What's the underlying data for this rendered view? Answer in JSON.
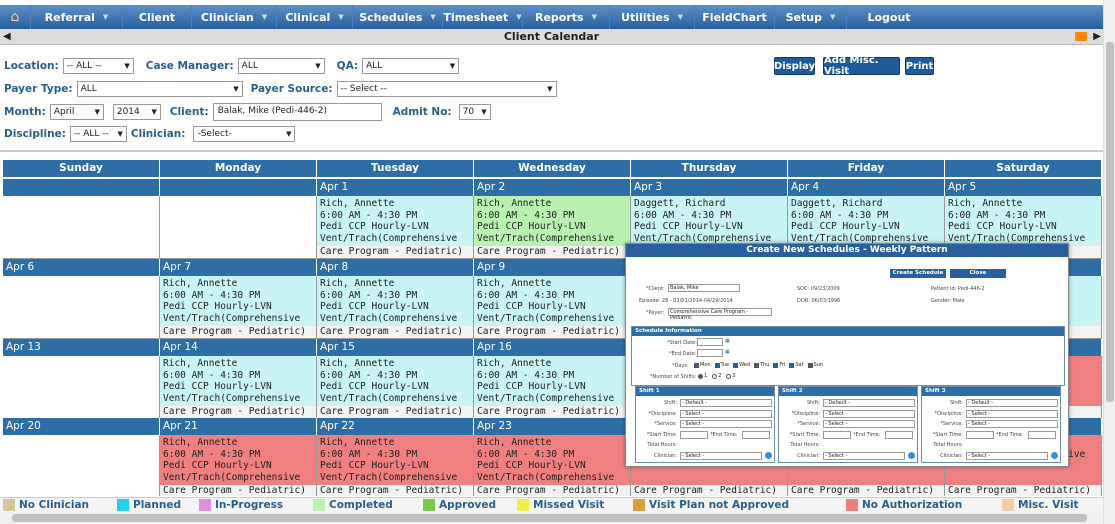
{
  "nav": {
    "items": [
      {
        "label": "Referral",
        "arrow": true
      },
      {
        "label": "Client",
        "arrow": false
      },
      {
        "label": "Clinician",
        "arrow": true
      },
      {
        "label": "Clinical",
        "arrow": true
      },
      {
        "label": "Schedules",
        "arrow": true
      },
      {
        "label": "Timesheet",
        "arrow": true
      },
      {
        "label": "Reports",
        "arrow": true
      },
      {
        "label": "Utilities",
        "arrow": true
      },
      {
        "label": "FieldChart",
        "arrow": false
      },
      {
        "label": "Setup",
        "arrow": true
      },
      {
        "label": "Logout",
        "arrow": false
      }
    ]
  },
  "page": {
    "title": "Client Calendar"
  },
  "filters": {
    "location_label": "Location:",
    "location_value": "-- ALL --",
    "case_manager_label": "Case Manager:",
    "case_manager_value": "ALL",
    "qa_label": "QA:",
    "qa_value": "ALL",
    "payer_type_label": "Payer Type:",
    "payer_type_value": "ALL",
    "payer_source_label": "Payer Source:",
    "payer_source_value": "-- Select --",
    "month_label": "Month:",
    "month_value": "April",
    "year_value": "2014",
    "client_label": "Client:",
    "client_value": "Balak, Mike (Pedi-446-2)",
    "admit_label": "Admit No:",
    "admit_value": "70",
    "discipline_label": "Discipline:",
    "discipline_value": "-- ALL --",
    "clinician_label": "Clinician:",
    "clinician_value": "-Select-"
  },
  "buttons": {
    "display": "Display",
    "add_misc": "Add Misc. Visit",
    "print": "Print"
  },
  "calendar": {
    "days": [
      "Sunday",
      "Monday",
      "Tuesday",
      "Wednesday",
      "Thursday",
      "Friday",
      "Saturday"
    ],
    "weeks": [
      {
        "dates": [
          "",
          "",
          "Apr 1",
          "Apr 2",
          "Apr 3",
          "Apr 4",
          "Apr 5"
        ],
        "events": [
          null,
          null,
          {
            "status": "planned",
            "name": "Rich, Annette",
            "time": "6:00 AM - 4:30 PM",
            "service": "Pedi CCP Hourly-LVN",
            "program": "Vent/Trach(Comprehensive",
            "care": "Care Program - Pediatric)"
          },
          {
            "status": "approved",
            "name": "Rich, Annette",
            "time": "6:00 AM - 4:30 PM",
            "service": "Pedi CCP Hourly-LVN",
            "program": "Vent/Trach(Comprehensive",
            "care": "Care Program - Pediatric)"
          },
          {
            "status": "planned",
            "name": "Daggett, Richard",
            "time": "6:00 AM - 4:30 PM",
            "service": "Pedi CCP Hourly-LVN",
            "program": "Vent/Trach(Comprehensive",
            "care": ""
          },
          {
            "status": "planned",
            "name": "Daggett, Richard",
            "time": "6:00 AM - 4:30 PM",
            "service": "Pedi CCP Hourly-LVN",
            "program": "Vent/Trach(Comprehensive",
            "care": ""
          },
          {
            "status": "planned",
            "name": "Rich, Annette",
            "time": "6:00 AM - 4:30 PM",
            "service": "Pedi CCP Hourly-LVN",
            "program": "Vent/Trach(Comprehensive",
            "care": ""
          }
        ]
      },
      {
        "dates": [
          "Apr 6",
          "Apr 7",
          "Apr 8",
          "Apr 9",
          "",
          "",
          ""
        ],
        "events": [
          null,
          {
            "status": "planned",
            "name": "Rich, Annette",
            "time": "6:00 AM - 4:30 PM",
            "service": "Pedi CCP Hourly-LVN",
            "program": "Vent/Trach(Comprehensive",
            "care": "Care Program - Pediatric)"
          },
          {
            "status": "planned",
            "name": "Rich, Annette",
            "time": "6:00 AM - 4:30 PM",
            "service": "Pedi CCP Hourly-LVN",
            "program": "Vent/Trach(Comprehensive",
            "care": "Care Program - Pediatric)"
          },
          {
            "status": "planned",
            "name": "Rich, Annette",
            "time": "6:00 AM - 4:30 PM",
            "service": "Pedi CCP Hourly-LVN",
            "program": "Vent/Trach(Comprehensive",
            "care": "Care Program - Pediatric)"
          },
          null,
          null,
          {
            "status": "planned",
            "name": "",
            "time": "",
            "service": "",
            "program": "ve",
            "care": ""
          }
        ]
      },
      {
        "dates": [
          "Apr 13",
          "Apr 14",
          "Apr 15",
          "Apr 16",
          "",
          "",
          ""
        ],
        "events": [
          null,
          {
            "status": "planned",
            "name": "Rich, Annette",
            "time": "6:00 AM - 4:30 PM",
            "service": "Pedi CCP Hourly-LVN",
            "program": "Vent/Trach(Comprehensive",
            "care": "Care Program - Pediatric)"
          },
          {
            "status": "planned",
            "name": "Rich, Annette",
            "time": "6:00 AM - 4:30 PM",
            "service": "Pedi CCP Hourly-LVN",
            "program": "Vent/Trach(Comprehensive",
            "care": "Care Program - Pediatric)"
          },
          {
            "status": "planned",
            "name": "Rich, Annette",
            "time": "6:00 AM - 4:30 PM",
            "service": "Pedi CCP Hourly-LVN",
            "program": "Vent/Trach(Comprehensive",
            "care": "Care Program - Pediatric)"
          },
          null,
          null,
          {
            "status": "noauth",
            "name": "",
            "time": "",
            "service": "",
            "program": "ve",
            "care": ""
          }
        ]
      },
      {
        "dates": [
          "Apr 20",
          "Apr 21",
          "Apr 22",
          "Apr 23",
          "",
          "",
          ""
        ],
        "events": [
          null,
          {
            "status": "noauth",
            "name": "Rich, Annette",
            "time": "6:00 AM - 4:30 PM",
            "service": "Pedi CCP Hourly-LVN",
            "program": "Vent/Trach(Comprehensive",
            "care": "Care Program - Pediatric)"
          },
          {
            "status": "noauth",
            "name": "Rich, Annette",
            "time": "6:00 AM - 4:30 PM",
            "service": "Pedi CCP Hourly-LVN",
            "program": "Vent/Trach(Comprehensive",
            "care": "Care Program - Pediatric)"
          },
          {
            "status": "noauth",
            "name": "Rich, Annette",
            "time": "6:00 AM - 4:30 PM",
            "service": "Pedi CCP Hourly-LVN",
            "program": "Vent/Trach(Comprehensive",
            "care": "Care Program - Pediatric)"
          },
          {
            "status": "noauth",
            "name": "",
            "time": "",
            "service": "Pedi CCP Hourly-LVN",
            "program": "Vent/Trach(Comprehensive",
            "care": "Care Program - Pediatric)"
          },
          {
            "status": "noauth",
            "name": "",
            "time": "",
            "service": "Pedi CCP Hourly-LVN",
            "program": "Vent/Trach(Comprehensive",
            "care": "Care Program - Pediatric)"
          },
          {
            "status": "noauth",
            "name": "",
            "time": "",
            "service": "Pedi CCP Hourly-LVN",
            "program": "Vent/Trach(Comprehensive",
            "care": "Care Program - Pediatric)"
          }
        ]
      }
    ]
  },
  "modal": {
    "title": "Create New Schedules - Weekly Pattern",
    "create_btn": "Create Schedule",
    "close_btn": "Close",
    "client_label": "*Client:",
    "client_value": "Balak, Mike",
    "soc": "SOC: 09/23/2009",
    "patient_id": "Patient Id: Pedi-446-2",
    "episode": "Episode: 28 - 03/01/2014-04/29/2014",
    "dob": "DOB: 06/03/1996",
    "gender": "Gender: Male",
    "payer_label": "*Payer:",
    "payer_value": "Comprehensive Care Program - Pediatric",
    "section": "Schedule Information",
    "start_label": "*Start Date:",
    "end_label": "*End Date:",
    "days_label": "*Days:",
    "days": [
      "Mon",
      "Tue",
      "Wed",
      "Thu",
      "Fri",
      "Sat",
      "Sun"
    ],
    "shifts_label": "*Number of Shifts:",
    "shift_opts": [
      "1",
      "2",
      "3"
    ],
    "shifts": [
      {
        "title": "Shift 1"
      },
      {
        "title": "Shift 2"
      },
      {
        "title": "Shift 3"
      }
    ],
    "f_shift": "Shift:",
    "f_disc": "*Discipline:",
    "f_serv": "*Service:",
    "f_start": "*Start Time:",
    "f_end": "*End Time:",
    "f_hours": "Total Hours:",
    "f_clin": "Clinician:",
    "v_default": "- Default -",
    "v_select": "- Select -"
  },
  "legend": [
    {
      "label": "No Clinician",
      "color": "#d4c89a"
    },
    {
      "label": "Planned",
      "color": "#22d0e8"
    },
    {
      "label": "In-Progress",
      "color": "#e08fd8"
    },
    {
      "label": "Completed",
      "color": "#b9f2b0"
    },
    {
      "label": "Approved",
      "color": "#7ac94a"
    },
    {
      "label": "Missed Visit",
      "color": "#f0ef50"
    },
    {
      "label": "Visit Plan not Approved",
      "color": "#d8a040"
    },
    {
      "label": "No Authorization",
      "color": "#f08080"
    },
    {
      "label": "Misc. Visit",
      "color": "#f5cda8"
    }
  ],
  "colors": {
    "nav": "#2a5f9e",
    "header": "#2e6ea6",
    "planned": "#c9f4f4",
    "approved": "#b9f2b0",
    "noauth": "#f08080"
  }
}
